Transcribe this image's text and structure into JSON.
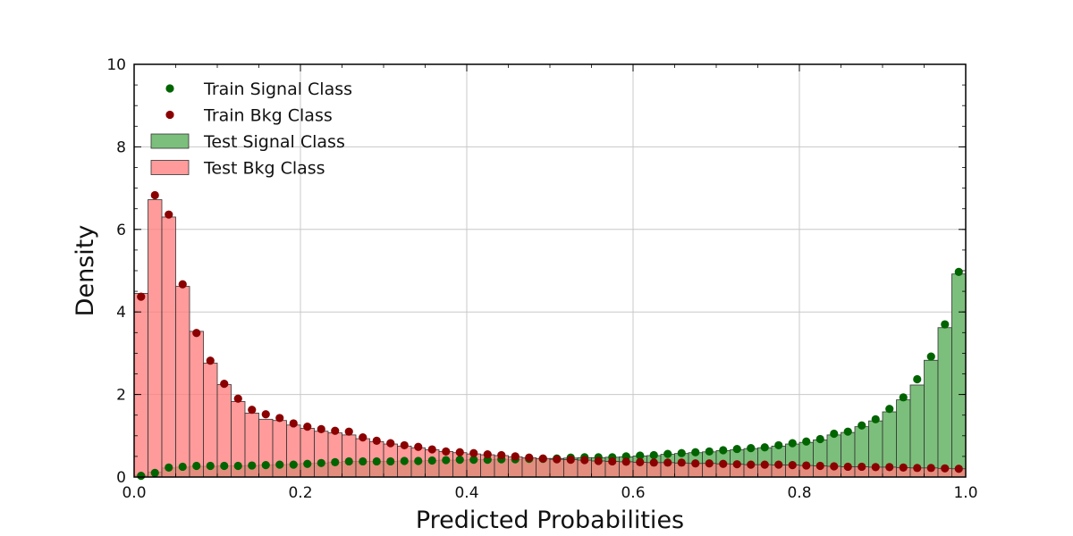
{
  "chart_data": {
    "type": "bar",
    "xlabel": "Predicted Probabilities",
    "ylabel": "Density",
    "xlim": [
      0.0,
      1.0
    ],
    "ylim": [
      0,
      10
    ],
    "xticks": [
      "0.0",
      "0.2",
      "0.4",
      "0.6",
      "0.8",
      "1.0"
    ],
    "yticks": [
      "0",
      "2",
      "4",
      "6",
      "8",
      "10"
    ],
    "grid": true,
    "legend_position": "top-left",
    "bins": 60,
    "series": [
      {
        "name": "Train Signal Class",
        "kind": "points",
        "color": "#006400",
        "values": [
          0.03,
          0.1,
          0.23,
          0.25,
          0.27,
          0.27,
          0.27,
          0.27,
          0.28,
          0.29,
          0.3,
          0.3,
          0.32,
          0.34,
          0.36,
          0.38,
          0.38,
          0.38,
          0.38,
          0.39,
          0.39,
          0.4,
          0.41,
          0.42,
          0.42,
          0.42,
          0.43,
          0.43,
          0.44,
          0.44,
          0.45,
          0.47,
          0.48,
          0.48,
          0.48,
          0.5,
          0.52,
          0.53,
          0.56,
          0.58,
          0.6,
          0.62,
          0.65,
          0.68,
          0.7,
          0.72,
          0.77,
          0.82,
          0.86,
          0.92,
          1.05,
          1.1,
          1.25,
          1.4,
          1.65,
          1.93,
          2.37,
          2.92,
          3.7,
          4.97
        ]
      },
      {
        "name": "Train Bkg Class",
        "kind": "points",
        "color": "#8b0000",
        "values": [
          4.37,
          6.83,
          6.36,
          4.67,
          3.49,
          2.82,
          2.26,
          1.9,
          1.63,
          1.52,
          1.43,
          1.3,
          1.22,
          1.16,
          1.12,
          1.1,
          0.96,
          0.88,
          0.82,
          0.77,
          0.73,
          0.67,
          0.62,
          0.6,
          0.58,
          0.55,
          0.53,
          0.5,
          0.47,
          0.45,
          0.43,
          0.42,
          0.41,
          0.39,
          0.38,
          0.37,
          0.36,
          0.35,
          0.35,
          0.35,
          0.33,
          0.33,
          0.32,
          0.31,
          0.3,
          0.3,
          0.3,
          0.29,
          0.28,
          0.27,
          0.26,
          0.25,
          0.25,
          0.24,
          0.24,
          0.23,
          0.22,
          0.22,
          0.21,
          0.2
        ]
      },
      {
        "name": "Test Signal Class",
        "kind": "bars",
        "color": "#7cbf7c",
        "values": [
          0.04,
          0.12,
          0.22,
          0.24,
          0.26,
          0.26,
          0.27,
          0.27,
          0.28,
          0.29,
          0.3,
          0.31,
          0.33,
          0.34,
          0.36,
          0.38,
          0.38,
          0.38,
          0.38,
          0.39,
          0.39,
          0.4,
          0.41,
          0.41,
          0.42,
          0.42,
          0.43,
          0.43,
          0.44,
          0.44,
          0.45,
          0.46,
          0.47,
          0.47,
          0.48,
          0.49,
          0.51,
          0.52,
          0.55,
          0.57,
          0.59,
          0.61,
          0.64,
          0.66,
          0.69,
          0.71,
          0.75,
          0.8,
          0.84,
          0.9,
          1.02,
          1.08,
          1.22,
          1.36,
          1.58,
          1.87,
          2.23,
          2.83,
          3.62,
          4.92
        ]
      },
      {
        "name": "Test Bkg Class",
        "kind": "bars",
        "color": "#ff7f7f",
        "values": [
          4.45,
          6.72,
          6.3,
          4.62,
          3.53,
          2.76,
          2.24,
          1.83,
          1.55,
          1.4,
          1.37,
          1.26,
          1.18,
          1.11,
          1.07,
          1.02,
          0.93,
          0.86,
          0.8,
          0.75,
          0.71,
          0.66,
          0.62,
          0.59,
          0.56,
          0.54,
          0.52,
          0.49,
          0.47,
          0.45,
          0.43,
          0.42,
          0.41,
          0.39,
          0.38,
          0.37,
          0.36,
          0.35,
          0.35,
          0.34,
          0.33,
          0.33,
          0.32,
          0.31,
          0.3,
          0.3,
          0.29,
          0.29,
          0.28,
          0.27,
          0.26,
          0.25,
          0.25,
          0.24,
          0.24,
          0.23,
          0.22,
          0.22,
          0.21,
          0.2
        ]
      }
    ],
    "tail_overrides": {
      "note_free": true
    }
  }
}
